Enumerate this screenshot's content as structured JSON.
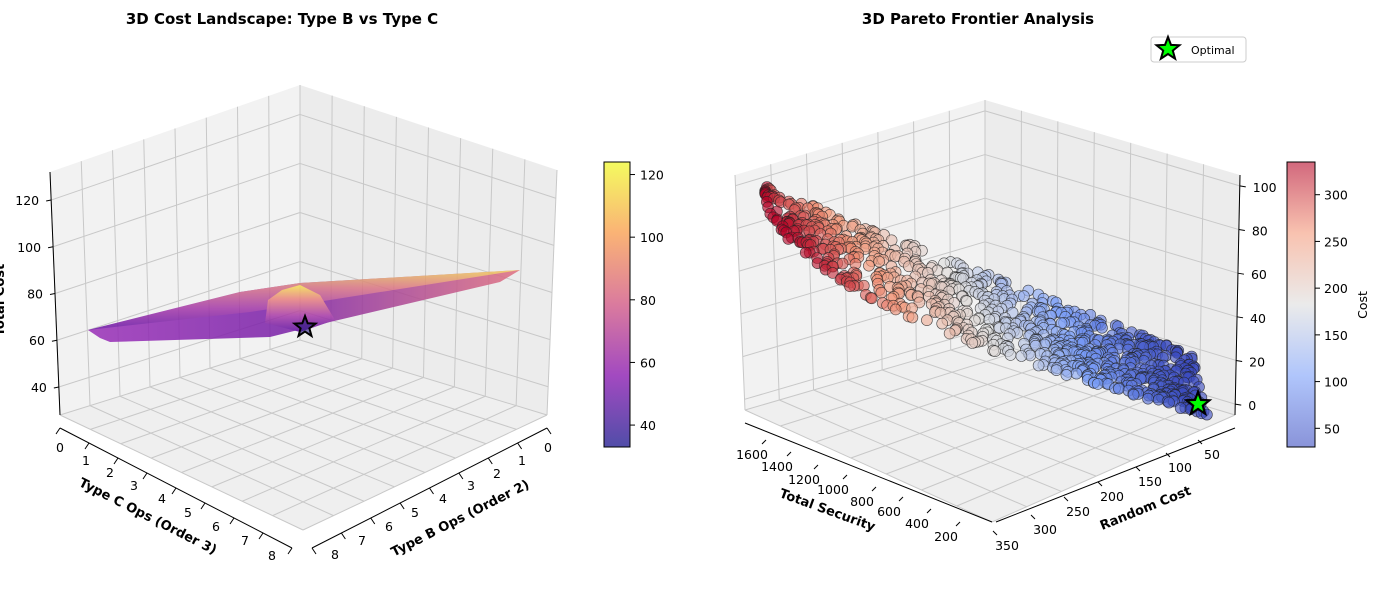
{
  "chart_data": [
    {
      "type": "surface3d",
      "title": "3D Cost Landscape: Type B vs Type C",
      "xlabel": "Type B Ops (Order 2)",
      "ylabel": "Type C Ops (Order 3)",
      "zlabel": "Total Cost",
      "x_ticks": [
        "0",
        "1",
        "2",
        "3",
        "4",
        "5",
        "6",
        "7",
        "8"
      ],
      "y_ticks": [
        "0",
        "1",
        "2",
        "3",
        "4",
        "5",
        "6",
        "7",
        "8"
      ],
      "z_ticks": [
        "40",
        "60",
        "80",
        "100",
        "120"
      ],
      "xlim": [
        0,
        8
      ],
      "ylim": [
        0,
        8
      ],
      "zlim": [
        28,
        132
      ],
      "colormap": "plasma",
      "colorbar": {
        "ticks": [
          "40",
          "60",
          "80",
          "100",
          "120"
        ],
        "range": [
          33,
          124
        ]
      },
      "optimal_point": {
        "type_b": 0,
        "type_c": 0,
        "cost": 55
      },
      "grid": true
    },
    {
      "type": "scatter3d",
      "title": "3D Pareto Frontier Analysis",
      "xlabel": "Total Security",
      "ylabel": "Random Cost",
      "zlabel": "",
      "x_ticks": [
        "1600",
        "1400",
        "1200",
        "1000",
        "800",
        "600",
        "400",
        "200"
      ],
      "y_ticks": [
        "350",
        "300",
        "250",
        "200",
        "150",
        "100",
        "50"
      ],
      "z_ticks": [
        "0",
        "20",
        "40",
        "60",
        "80",
        "100"
      ],
      "xlim": [
        100,
        1700
      ],
      "ylim": [
        20,
        360
      ],
      "zlim": [
        -5,
        105
      ],
      "colormap": "coolwarm",
      "colorbar": {
        "label": "Cost",
        "ticks": [
          "50",
          "100",
          "150",
          "200",
          "250",
          "300"
        ],
        "range": [
          30,
          335
        ]
      },
      "legend": {
        "entries": [
          "Optimal"
        ],
        "placement": "top-right"
      },
      "optimal_point": {
        "total_security": 150,
        "random_cost": 40,
        "z": 2
      },
      "grid": true
    }
  ]
}
